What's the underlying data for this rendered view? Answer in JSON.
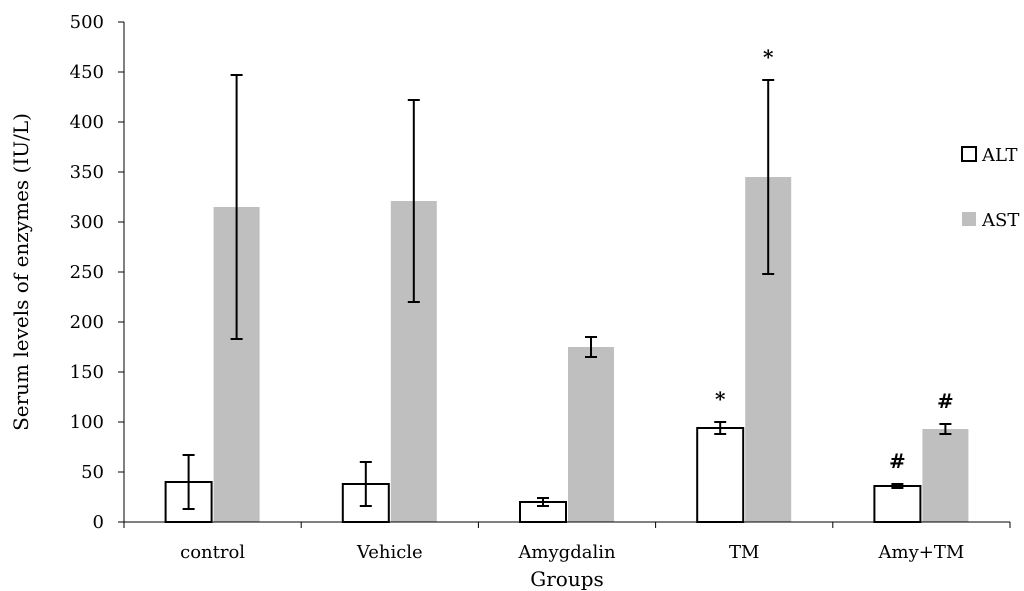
{
  "chart_data": {
    "type": "bar",
    "xlabel": "Groups",
    "ylabel": "Serum levels of enzymes (IU/L)",
    "ylim": [
      0,
      500
    ],
    "yticks": [
      0,
      50,
      100,
      150,
      200,
      250,
      300,
      350,
      400,
      450,
      500
    ],
    "grid": false,
    "legend_position": "right",
    "categories": [
      "control",
      "Vehicle",
      "Amygdalin",
      "TM",
      "Amy+TM"
    ],
    "series": [
      {
        "name": "ALT",
        "color": "#ffffff",
        "stroke": "#000000",
        "values": [
          40,
          38,
          20,
          94,
          36
        ],
        "errors": [
          27,
          22,
          4,
          6,
          2
        ],
        "annotations": [
          "",
          "",
          "",
          "*",
          "#"
        ]
      },
      {
        "name": "AST",
        "color": "#bfbfbf",
        "stroke": "none",
        "values": [
          315,
          321,
          175,
          345,
          93
        ],
        "errors": [
          132,
          101,
          10,
          97,
          5
        ],
        "annotations": [
          "",
          "",
          "",
          "*",
          "#"
        ]
      }
    ]
  }
}
